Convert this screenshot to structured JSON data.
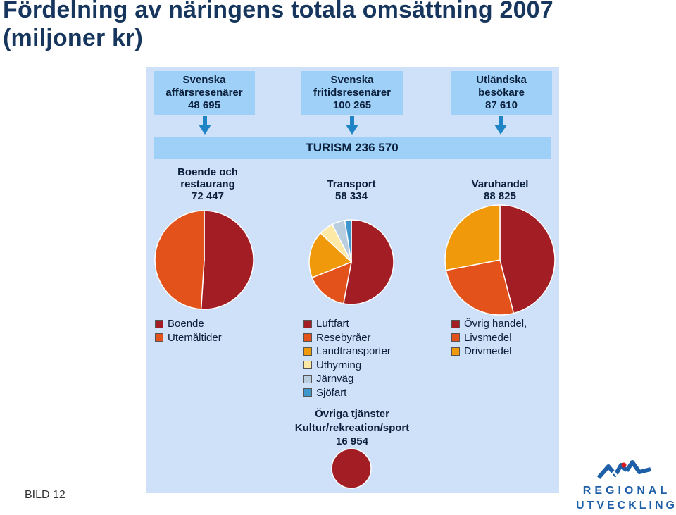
{
  "title": "Fördelning av näringens totala omsättning 2007\n(miljoner kr)",
  "footer_label": "BILD 12",
  "logo": {
    "line1": "REGIONAL",
    "line2": "UTVECKLING",
    "icon": "mountain-logo-icon",
    "color": "#1f5fa8"
  },
  "sources": [
    {
      "line1": "Svenska",
      "line2": "affärsresenärer",
      "value": "48 695"
    },
    {
      "line1": "Svenska",
      "line2": "fritidsresenärer",
      "value": "100 265"
    },
    {
      "line1": "Utländska",
      "line2": "besökare",
      "value": "87 610"
    }
  ],
  "turism_label": "TURISM 236 570",
  "sectors": [
    {
      "line1": "Boende och",
      "line2": "restaurang",
      "value": "72 447"
    },
    {
      "line1": "Transport",
      "line2": "",
      "value": "58 334"
    },
    {
      "line1": "Varuhandel",
      "line2": "",
      "value": "88 825"
    }
  ],
  "ovriga": {
    "line1": "Övriga tjänster",
    "line2": "Kultur/rekreation/sport",
    "value": "16 954"
  },
  "colors": {
    "red": "#a21d24",
    "orange_red": "#e4521b",
    "orange": "#f0990b",
    "cream": "#fce9a6",
    "grey_blue": "#b9cfe0",
    "blue": "#3d97cc",
    "panel": "#cfe1f8",
    "box": "#9fd0f7",
    "arrow": "#1f84c6"
  },
  "chart_data": [
    {
      "type": "pie",
      "title": "Boende och restaurang",
      "total": 72447,
      "labels": [
        "Boende",
        "Utemåltider"
      ],
      "shares": [
        0.51,
        0.49
      ],
      "colors": [
        "#a21d24",
        "#e4521b"
      ]
    },
    {
      "type": "pie",
      "title": "Transport",
      "total": 58334,
      "labels": [
        "Luftfart",
        "Resebyråer",
        "Landtransporter",
        "Uthyrning",
        "Järnväg",
        "Sjöfart"
      ],
      "shares": [
        0.53,
        0.16,
        0.18,
        0.055,
        0.05,
        0.025
      ],
      "colors": [
        "#a21d24",
        "#e4521b",
        "#f0990b",
        "#fce9a6",
        "#b9cfe0",
        "#3d97cc"
      ]
    },
    {
      "type": "pie",
      "title": "Varuhandel",
      "total": 88825,
      "labels": [
        "Övrig handel,",
        "Livsmedel",
        "Drivmedel"
      ],
      "shares": [
        0.46,
        0.26,
        0.28
      ],
      "colors": [
        "#a21d24",
        "#e4521b",
        "#f0990b"
      ]
    },
    {
      "type": "pie",
      "title": "Övriga tjänster Kultur/rekreation/sport",
      "total": 16954,
      "labels": [
        "Övriga tjänster"
      ],
      "shares": [
        1.0
      ],
      "colors": [
        "#a21d24"
      ]
    }
  ]
}
